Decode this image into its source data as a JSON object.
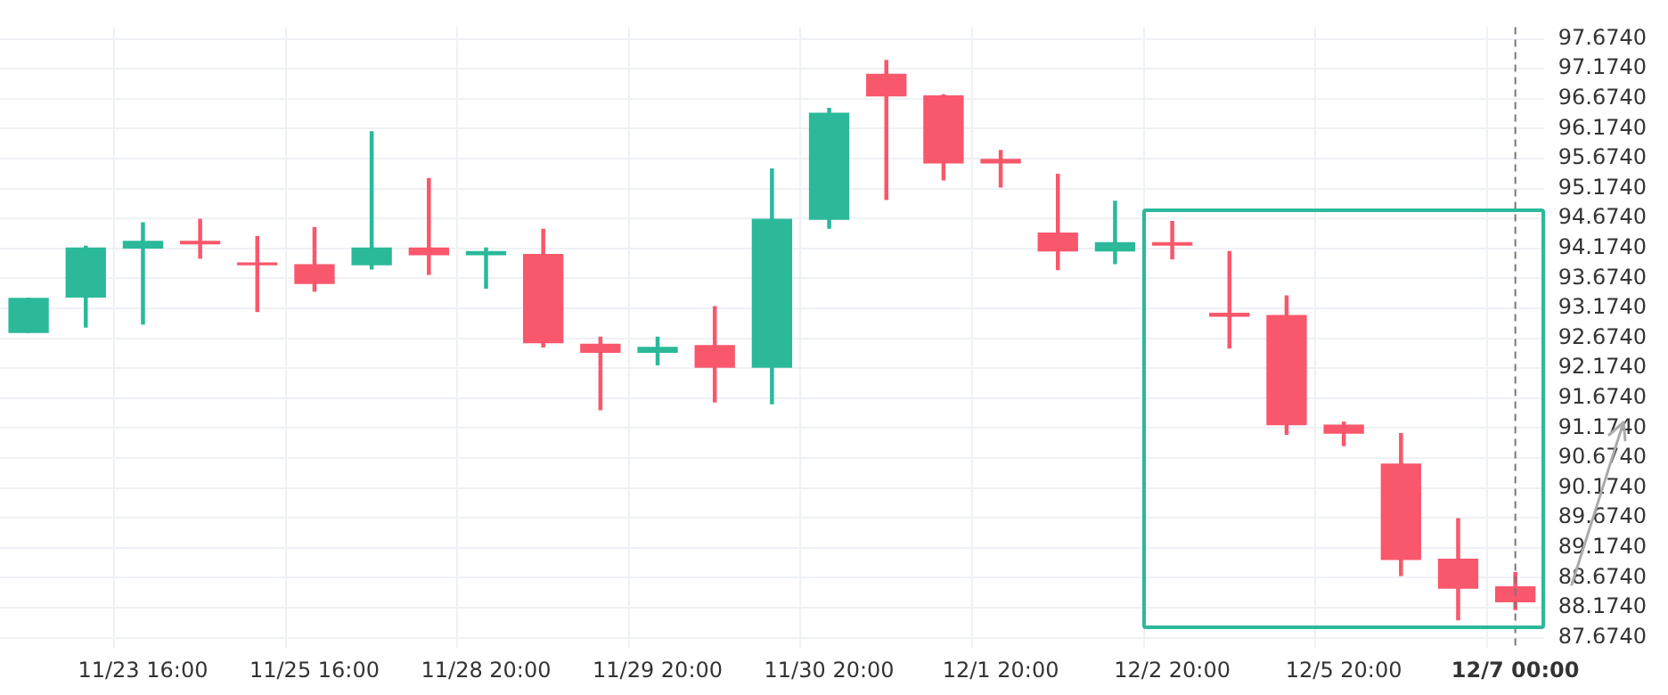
{
  "chart_data": {
    "type": "candlestick",
    "categories": [
      null,
      null,
      "11/23 16:00",
      null,
      null,
      "11/25 16:00",
      null,
      null,
      "11/28 20:00",
      null,
      null,
      "11/29 20:00",
      null,
      null,
      "11/30 20:00",
      null,
      null,
      "12/1 20:00",
      null,
      null,
      "12/2 20:00",
      null,
      null,
      "12/5 20:00",
      null,
      null,
      "12/7 00:00"
    ],
    "ohlc": [
      [
        92.77,
        93.34,
        92.77,
        93.34
      ],
      [
        93.36,
        94.21,
        92.86,
        94.18
      ],
      [
        94.18,
        94.6,
        92.91,
        94.29
      ],
      [
        94.29,
        94.66,
        94.01,
        94.25
      ],
      [
        93.93,
        94.37,
        93.12,
        93.9
      ],
      [
        93.9,
        94.52,
        93.46,
        93.59
      ],
      [
        93.9,
        96.12,
        93.83,
        94.18
      ],
      [
        94.18,
        95.34,
        93.74,
        94.07
      ],
      [
        94.07,
        94.18,
        93.51,
        94.12
      ],
      [
        94.07,
        94.49,
        92.53,
        92.6
      ],
      [
        92.57,
        92.69,
        91.48,
        92.44
      ],
      [
        92.44,
        92.69,
        92.23,
        92.52
      ],
      [
        92.55,
        93.2,
        91.61,
        92.19
      ],
      [
        92.19,
        95.5,
        91.58,
        94.66
      ],
      [
        94.66,
        96.51,
        94.51,
        96.43
      ],
      [
        97.08,
        97.31,
        94.99,
        96.72
      ],
      [
        96.72,
        96.74,
        95.32,
        95.6
      ],
      [
        95.66,
        95.81,
        95.2,
        95.6
      ],
      [
        94.43,
        95.41,
        93.82,
        94.13
      ],
      [
        94.13,
        94.96,
        93.92,
        94.27
      ],
      [
        94.27,
        94.62,
        94,
        94.23
      ],
      [
        93.09,
        94.12,
        92.51,
        93.04
      ],
      [
        93.05,
        93.38,
        91.07,
        91.23
      ],
      [
        91.22,
        91.27,
        90.88,
        91.09
      ],
      [
        90.57,
        91.08,
        88.71,
        88.98
      ],
      [
        88.98,
        89.66,
        87.97,
        88.5
      ],
      [
        88.52,
        88.76,
        88.14,
        88.27
      ]
    ],
    "colors": [
      "#2bb99a",
      "#2bb99a",
      "#2bb99a",
      "#f9576c",
      "#f9576c",
      "#f9576c",
      "#2bb99a",
      "#f9576c",
      "#2bb99a",
      "#f9576c",
      "#f9576c",
      "#2bb99a",
      "#f9576c",
      "#2bb99a",
      "#2bb99a",
      "#f9576c",
      "#f9576c",
      "#f9576c",
      "#f9576c",
      "#2bb99a",
      "#f9576c",
      "#f9576c",
      "#f9576c",
      "#f9576c",
      "#f9576c",
      "#f9576c",
      "#f9576c"
    ],
    "ylim": [
      87.5,
      97.87
    ],
    "yticks": [
      {
        "value": 87.674,
        "label": "87.6740"
      },
      {
        "value": 88.174,
        "label": "88.1740"
      },
      {
        "value": 88.674,
        "label": "88.6740"
      },
      {
        "value": 89.174,
        "label": "89.1740"
      },
      {
        "value": 89.674,
        "label": "89.6740"
      },
      {
        "value": 90.174,
        "label": "90.1740"
      },
      {
        "value": 90.674,
        "label": "90.6740"
      },
      {
        "value": 91.174,
        "label": "91.1740"
      },
      {
        "value": 91.674,
        "label": "91.6740"
      },
      {
        "value": 92.174,
        "label": "92.1740"
      },
      {
        "value": 92.674,
        "label": "92.6740"
      },
      {
        "value": 93.174,
        "label": "93.1740"
      },
      {
        "value": 93.674,
        "label": "93.6740"
      },
      {
        "value": 94.174,
        "label": "94.1740"
      },
      {
        "value": 94.674,
        "label": "94.6740"
      },
      {
        "value": 95.174,
        "label": "95.1740"
      },
      {
        "value": 95.674,
        "label": "95.6740"
      },
      {
        "value": 96.174,
        "label": "96.1740"
      },
      {
        "value": 96.674,
        "label": "96.6740"
      },
      {
        "value": 97.174,
        "label": "97.1740"
      },
      {
        "value": 97.674,
        "label": "97.6740"
      }
    ],
    "ref_lines": [
      {
        "axis": "x",
        "value": "12/7 00:00",
        "color": "#777777",
        "line_style": "dashed"
      }
    ],
    "grid": true,
    "legend": false
  }
}
